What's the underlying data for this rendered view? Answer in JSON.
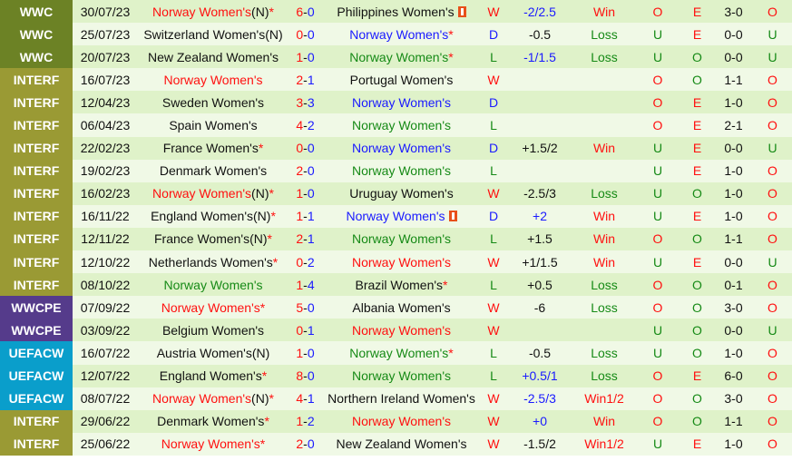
{
  "league_colors": {
    "WWC": "#6c8225",
    "INTERF": "#9a9a34",
    "WWCPE": "#553b8b",
    "UEFACW": "#0a9ecb"
  },
  "text_colors": {
    "red": "#ff1010",
    "blue": "#1a1aff",
    "green": "#168a16",
    "black": "#111111"
  },
  "rows": [
    {
      "league": "WWC",
      "date": "30/07/23",
      "home": {
        "name": "Norway Women's",
        "color": "red",
        "suffix": "(N)",
        "star": true
      },
      "hg": "6",
      "ag": "0",
      "away": {
        "name": "Philippines Women's",
        "color": "black",
        "card": true
      },
      "res": "W",
      "hc": "-2/2.5",
      "hc_color": "blue",
      "hres": "Win",
      "ou": "O",
      "oe": "E",
      "ht": "3-0",
      "ht_ou": "O"
    },
    {
      "league": "WWC",
      "date": "25/07/23",
      "home": {
        "name": "Switzerland Women's",
        "color": "black",
        "suffix": "(N)"
      },
      "hg": "0",
      "ag": "0",
      "away": {
        "name": "Norway Women's",
        "color": "blue",
        "star": true
      },
      "res": "D",
      "hc": "-0.5",
      "hc_color": "black",
      "hres": "Loss",
      "ou": "U",
      "oe": "E",
      "ht": "0-0",
      "ht_ou": "U"
    },
    {
      "league": "WWC",
      "date": "20/07/23",
      "home": {
        "name": "New Zealand Women's",
        "color": "black"
      },
      "hg": "1",
      "ag": "0",
      "away": {
        "name": "Norway Women's",
        "color": "green",
        "star": true
      },
      "res": "L",
      "hc": "-1/1.5",
      "hc_color": "blue",
      "hres": "Loss",
      "ou": "U",
      "oe": "O",
      "ht": "0-0",
      "ht_ou": "U"
    },
    {
      "league": "INTERF",
      "date": "16/07/23",
      "home": {
        "name": "Norway Women's",
        "color": "red"
      },
      "hg": "2",
      "ag": "1",
      "away": {
        "name": "Portugal Women's",
        "color": "black"
      },
      "res": "W",
      "hc": "",
      "hc_color": "black",
      "hres": "",
      "ou": "O",
      "oe": "O",
      "ht": "1-1",
      "ht_ou": "O"
    },
    {
      "league": "INTERF",
      "date": "12/04/23",
      "home": {
        "name": "Sweden Women's",
        "color": "black"
      },
      "hg": "3",
      "ag": "3",
      "away": {
        "name": "Norway Women's",
        "color": "blue"
      },
      "res": "D",
      "hc": "",
      "hc_color": "black",
      "hres": "",
      "ou": "O",
      "oe": "E",
      "ht": "1-0",
      "ht_ou": "O"
    },
    {
      "league": "INTERF",
      "date": "06/04/23",
      "home": {
        "name": "Spain Women's",
        "color": "black"
      },
      "hg": "4",
      "ag": "2",
      "away": {
        "name": "Norway Women's",
        "color": "green"
      },
      "res": "L",
      "hc": "",
      "hc_color": "black",
      "hres": "",
      "ou": "O",
      "oe": "E",
      "ht": "2-1",
      "ht_ou": "O"
    },
    {
      "league": "INTERF",
      "date": "22/02/23",
      "home": {
        "name": "France Women's",
        "color": "black",
        "star": true
      },
      "hg": "0",
      "ag": "0",
      "away": {
        "name": "Norway Women's",
        "color": "blue"
      },
      "res": "D",
      "hc": "+1.5/2",
      "hc_color": "black",
      "hres": "Win",
      "ou": "U",
      "oe": "E",
      "ht": "0-0",
      "ht_ou": "U"
    },
    {
      "league": "INTERF",
      "date": "19/02/23",
      "home": {
        "name": "Denmark Women's",
        "color": "black"
      },
      "hg": "2",
      "ag": "0",
      "away": {
        "name": "Norway Women's",
        "color": "green"
      },
      "res": "L",
      "hc": "",
      "hc_color": "black",
      "hres": "",
      "ou": "U",
      "oe": "E",
      "ht": "1-0",
      "ht_ou": "O"
    },
    {
      "league": "INTERF",
      "date": "16/02/23",
      "home": {
        "name": "Norway Women's",
        "color": "red",
        "suffix": "(N)",
        "star": true
      },
      "hg": "1",
      "ag": "0",
      "away": {
        "name": "Uruguay Women's",
        "color": "black"
      },
      "res": "W",
      "hc": "-2.5/3",
      "hc_color": "black",
      "hres": "Loss",
      "ou": "U",
      "oe": "O",
      "ht": "1-0",
      "ht_ou": "O"
    },
    {
      "league": "INTERF",
      "date": "16/11/22",
      "home": {
        "name": "England Women's",
        "color": "black",
        "suffix": "(N)",
        "star": true
      },
      "hg": "1",
      "ag": "1",
      "away": {
        "name": "Norway Women's",
        "color": "blue",
        "card": true
      },
      "res": "D",
      "hc": "+2",
      "hc_color": "blue",
      "hres": "Win",
      "ou": "U",
      "oe": "E",
      "ht": "1-0",
      "ht_ou": "O"
    },
    {
      "league": "INTERF",
      "date": "12/11/22",
      "home": {
        "name": "France Women's",
        "color": "black",
        "suffix": "(N)",
        "star": true
      },
      "hg": "2",
      "ag": "1",
      "away": {
        "name": "Norway Women's",
        "color": "green"
      },
      "res": "L",
      "hc": "+1.5",
      "hc_color": "black",
      "hres": "Win",
      "ou": "O",
      "oe": "O",
      "ht": "1-1",
      "ht_ou": "O"
    },
    {
      "league": "INTERF",
      "date": "12/10/22",
      "home": {
        "name": "Netherlands Women's",
        "color": "black",
        "star": true
      },
      "hg": "0",
      "ag": "2",
      "away": {
        "name": "Norway Women's",
        "color": "red"
      },
      "res": "W",
      "hc": "+1/1.5",
      "hc_color": "black",
      "hres": "Win",
      "ou": "U",
      "oe": "E",
      "ht": "0-0",
      "ht_ou": "U"
    },
    {
      "league": "INTERF",
      "date": "08/10/22",
      "home": {
        "name": "Norway Women's",
        "color": "green"
      },
      "hg": "1",
      "ag": "4",
      "away": {
        "name": "Brazil Women's",
        "color": "black",
        "star": true
      },
      "res": "L",
      "hc": "+0.5",
      "hc_color": "black",
      "hres": "Loss",
      "ou": "O",
      "oe": "O",
      "ht": "0-1",
      "ht_ou": "O"
    },
    {
      "league": "WWCPE",
      "date": "07/09/22",
      "home": {
        "name": "Norway Women's",
        "color": "red",
        "star": true
      },
      "hg": "5",
      "ag": "0",
      "away": {
        "name": "Albania Women's",
        "color": "black"
      },
      "res": "W",
      "hc": "-6",
      "hc_color": "black",
      "hres": "Loss",
      "ou": "O",
      "oe": "O",
      "ht": "3-0",
      "ht_ou": "O"
    },
    {
      "league": "WWCPE",
      "date": "03/09/22",
      "home": {
        "name": "Belgium Women's",
        "color": "black"
      },
      "hg": "0",
      "ag": "1",
      "away": {
        "name": "Norway Women's",
        "color": "red"
      },
      "res": "W",
      "hc": "",
      "hc_color": "black",
      "hres": "",
      "ou": "U",
      "oe": "O",
      "ht": "0-0",
      "ht_ou": "U"
    },
    {
      "league": "UEFACW",
      "date": "16/07/22",
      "home": {
        "name": "Austria Women's",
        "color": "black",
        "suffix": "(N)"
      },
      "hg": "1",
      "ag": "0",
      "away": {
        "name": "Norway Women's",
        "color": "green",
        "star": true
      },
      "res": "L",
      "hc": "-0.5",
      "hc_color": "black",
      "hres": "Loss",
      "ou": "U",
      "oe": "O",
      "ht": "1-0",
      "ht_ou": "O"
    },
    {
      "league": "UEFACW",
      "date": "12/07/22",
      "home": {
        "name": "England Women's",
        "color": "black",
        "star": true
      },
      "hg": "8",
      "ag": "0",
      "away": {
        "name": "Norway Women's",
        "color": "green"
      },
      "res": "L",
      "hc": "+0.5/1",
      "hc_color": "blue",
      "hres": "Loss",
      "ou": "O",
      "oe": "E",
      "ht": "6-0",
      "ht_ou": "O"
    },
    {
      "league": "UEFACW",
      "date": "08/07/22",
      "home": {
        "name": "Norway Women's",
        "color": "red",
        "suffix": "(N)",
        "star": true
      },
      "hg": "4",
      "ag": "1",
      "away": {
        "name": "Northern Ireland Women's",
        "color": "black"
      },
      "res": "W",
      "hc": "-2.5/3",
      "hc_color": "blue",
      "hres": "Win1/2",
      "ou": "O",
      "oe": "O",
      "ht": "3-0",
      "ht_ou": "O"
    },
    {
      "league": "INTERF",
      "date": "29/06/22",
      "home": {
        "name": "Denmark Women's",
        "color": "black",
        "star": true
      },
      "hg": "1",
      "ag": "2",
      "away": {
        "name": "Norway Women's",
        "color": "red"
      },
      "res": "W",
      "hc": "+0",
      "hc_color": "blue",
      "hres": "Win",
      "ou": "O",
      "oe": "O",
      "ht": "1-1",
      "ht_ou": "O"
    },
    {
      "league": "INTERF",
      "date": "25/06/22",
      "home": {
        "name": "Norway Women's",
        "color": "red",
        "star": true
      },
      "hg": "2",
      "ag": "0",
      "away": {
        "name": "New Zealand Women's",
        "color": "black"
      },
      "res": "W",
      "hc": "-1.5/2",
      "hc_color": "black",
      "hres": "Win1/2",
      "ou": "U",
      "oe": "E",
      "ht": "1-0",
      "ht_ou": "O"
    }
  ]
}
